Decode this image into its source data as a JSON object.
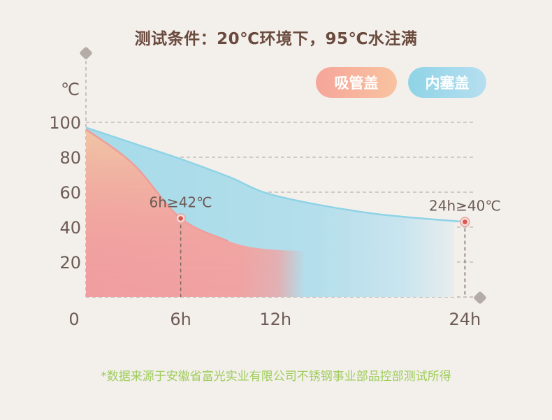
{
  "title": "测试条件：20℃环境下，95℃水注满",
  "legend": [
    {
      "label": "吸管盖",
      "color": "#f4a59b"
    },
    {
      "label": "内塞盖",
      "color": "#92d4e8"
    }
  ],
  "footnote": "*数据来源于安徽省富光实业有限公司不锈钢事业部品控部测试所得",
  "chart_data": {
    "type": "area",
    "ylabel": "℃",
    "x_ticks": [
      "0",
      "6h",
      "12h",
      "24h"
    ],
    "y_ticks": [
      "20",
      "40",
      "60",
      "80",
      "100"
    ],
    "ylim": [
      0,
      100
    ],
    "grid": true,
    "legend_position": "top-right",
    "series": [
      {
        "name": "内塞盖",
        "color": "#92d4e8",
        "x": [
          "0",
          "3h",
          "6h",
          "9h",
          "12h",
          "18h",
          "24h"
        ],
        "values": [
          97,
          88,
          79,
          69,
          58,
          48,
          43
        ]
      },
      {
        "name": "吸管盖",
        "color": "#f4a59b",
        "x": [
          "0",
          "3h",
          "6h",
          "9h",
          "12h",
          "18h",
          "24h"
        ],
        "values": [
          96,
          76,
          45,
          32,
          27,
          26,
          25
        ]
      }
    ],
    "annotations": [
      {
        "x": "6h",
        "y": 45,
        "text": "6h≥42℃",
        "series": "吸管盖"
      },
      {
        "x": "24h",
        "y": 43,
        "text": "24h≥40℃",
        "series": "内塞盖"
      }
    ]
  }
}
